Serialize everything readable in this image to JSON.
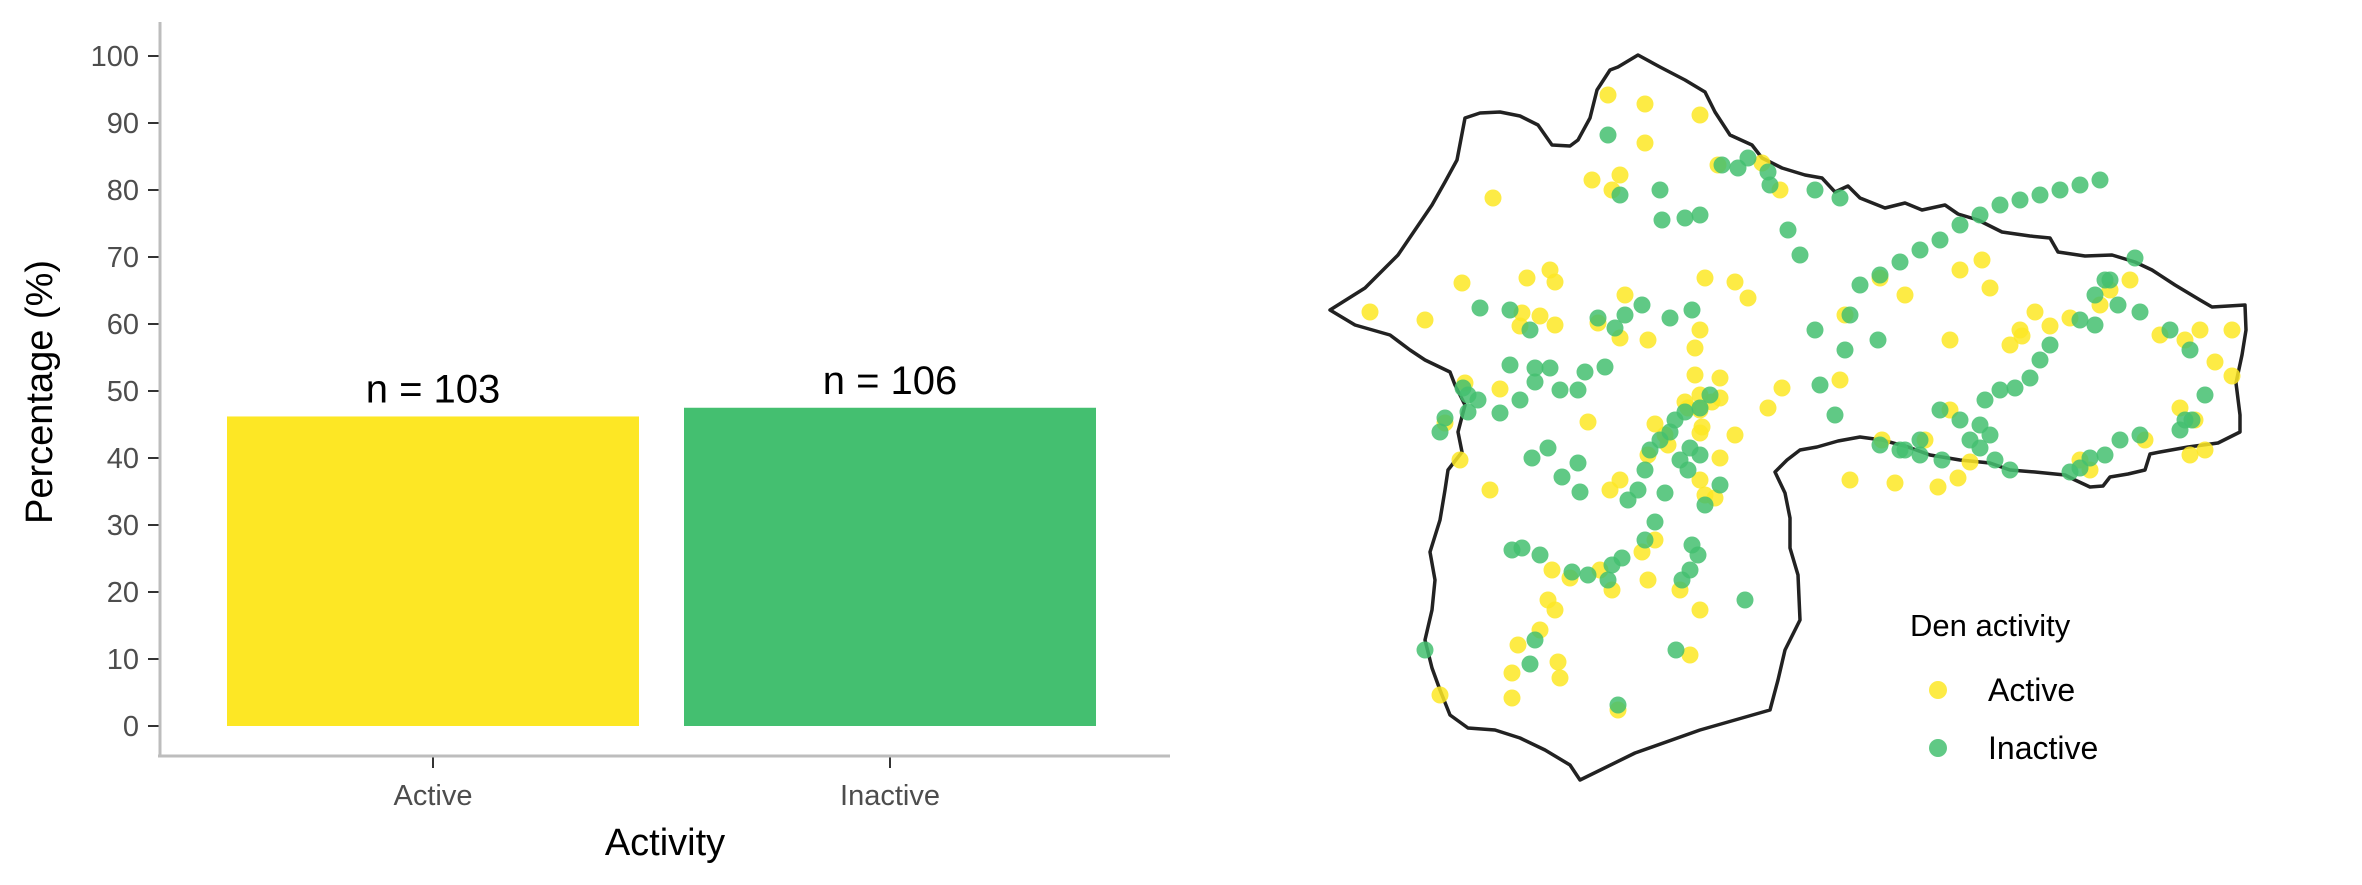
{
  "chart_data": [
    {
      "type": "bar",
      "categories": [
        "Active",
        "Inactive"
      ],
      "values": [
        46.2,
        47.5
      ],
      "bar_labels": [
        "n =  103",
        "n =  106"
      ],
      "colors": [
        "#FDE725",
        "#44BF70"
      ],
      "xlabel": "Activity",
      "ylabel": "Percentage (%)",
      "ylim": [
        0,
        100
      ],
      "yticks": [
        0,
        10,
        20,
        30,
        40,
        50,
        60,
        70,
        80,
        90,
        100
      ],
      "grid": false
    },
    {
      "type": "scatter",
      "legend": {
        "title": "Den activity",
        "placement": "bottom-right",
        "entries": [
          {
            "label": "Active",
            "color": "#FDE725"
          },
          {
            "label": "Inactive",
            "color": "#44BF70"
          }
        ]
      }
    }
  ]
}
